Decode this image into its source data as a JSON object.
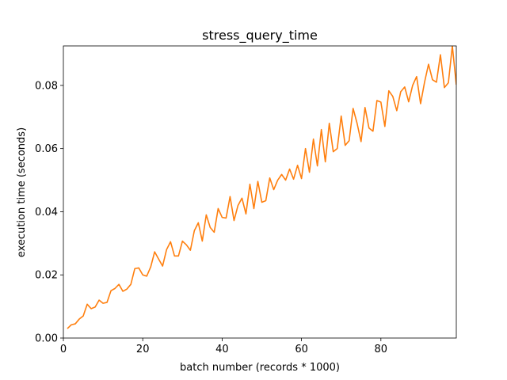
{
  "chart_data": {
    "type": "line",
    "title": "stress_query_time",
    "xlabel": "batch number (records * 1000)",
    "ylabel": "execution time (seconds)",
    "xlim": [
      0,
      99
    ],
    "ylim": [
      0.0,
      0.0925
    ],
    "xticks": [
      0,
      20,
      40,
      60,
      80
    ],
    "xtick_labels": [
      "0",
      "20",
      "40",
      "60",
      "80"
    ],
    "yticks": [
      0.0,
      0.02,
      0.04,
      0.06,
      0.08
    ],
    "ytick_labels": [
      "0.00",
      "0.02",
      "0.04",
      "0.06",
      "0.08"
    ],
    "grid": false,
    "legend": "none",
    "series": [
      {
        "color": "#ff7f0e",
        "x": [
          1,
          2,
          3,
          4,
          5,
          6,
          7,
          8,
          9,
          10,
          11,
          12,
          13,
          14,
          15,
          16,
          17,
          18,
          19,
          20,
          21,
          22,
          23,
          24,
          25,
          26,
          27,
          28,
          29,
          30,
          31,
          32,
          33,
          34,
          35,
          36,
          37,
          38,
          39,
          40,
          41,
          42,
          43,
          44,
          45,
          46,
          47,
          48,
          49,
          50,
          51,
          52,
          53,
          54,
          55,
          56,
          57,
          58,
          59,
          60,
          61,
          62,
          63,
          64,
          65,
          66,
          67,
          68,
          69,
          70,
          71,
          72,
          73,
          74,
          75,
          76,
          77,
          78,
          79,
          80,
          81,
          82,
          83,
          84,
          85,
          86,
          87,
          88,
          89,
          90,
          91,
          92,
          93,
          94,
          95,
          96,
          97,
          98,
          99
        ],
        "y": [
          0.003,
          0.0042,
          0.0045,
          0.006,
          0.007,
          0.0107,
          0.0093,
          0.0098,
          0.012,
          0.011,
          0.0113,
          0.015,
          0.0157,
          0.017,
          0.0148,
          0.0155,
          0.017,
          0.022,
          0.0222,
          0.02,
          0.0196,
          0.0225,
          0.0273,
          0.025,
          0.0228,
          0.028,
          0.0305,
          0.026,
          0.026,
          0.0307,
          0.0295,
          0.0278,
          0.034,
          0.0365,
          0.0307,
          0.039,
          0.035,
          0.0335,
          0.041,
          0.0382,
          0.038,
          0.0448,
          0.0372,
          0.042,
          0.0443,
          0.0393,
          0.0487,
          0.041,
          0.0496,
          0.043,
          0.0435,
          0.0507,
          0.047,
          0.05,
          0.0518,
          0.05,
          0.0535,
          0.0503,
          0.0547,
          0.0505,
          0.06,
          0.0525,
          0.063,
          0.0545,
          0.066,
          0.0558,
          0.068,
          0.059,
          0.06,
          0.0703,
          0.061,
          0.0625,
          0.0727,
          0.068,
          0.0622,
          0.073,
          0.0665,
          0.0655,
          0.0752,
          0.0747,
          0.067,
          0.0783,
          0.0765,
          0.072,
          0.078,
          0.0795,
          0.0748,
          0.08,
          0.0828,
          0.0742,
          0.081,
          0.0867,
          0.0818,
          0.081,
          0.0897,
          0.0793,
          0.0808,
          0.0925,
          0.0802
        ]
      }
    ]
  }
}
